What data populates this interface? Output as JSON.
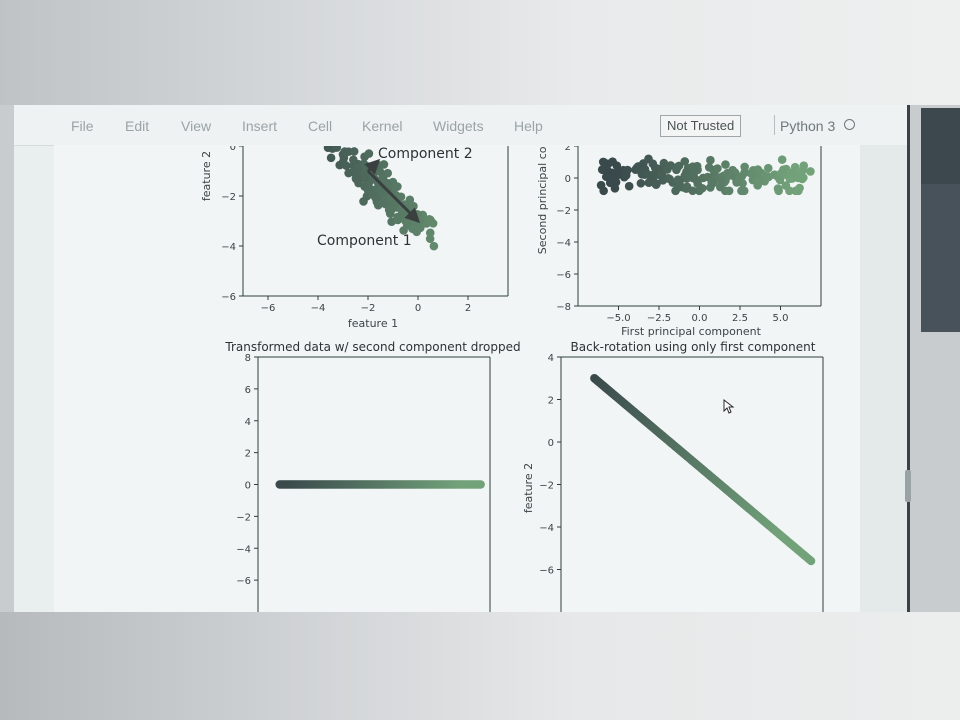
{
  "menu": {
    "file": "File",
    "edit": "Edit",
    "view": "View",
    "insert": "Insert",
    "cell": "Cell",
    "kernel": "Kernel",
    "widgets": "Widgets",
    "help": "Help"
  },
  "trust_badge": "Not Trusted",
  "kernel_name": "Python 3",
  "colors": {
    "dark_points": "#3a4a4c",
    "light_points": "#72a27a",
    "arrow": "#3a3f40"
  },
  "chart_data": [
    {
      "type": "scatter",
      "title": "",
      "xlabel": "feature 1",
      "ylabel": "feature 2",
      "xticks": [
        "−6",
        "−4",
        "−2",
        "0",
        "2"
      ],
      "yticks": [
        "0",
        "−2",
        "−4",
        "−6"
      ],
      "xlim": [
        -7,
        3.6
      ],
      "ylim": [
        -6,
        0
      ],
      "annotations": [
        "Component 2",
        "Component 1"
      ],
      "arrow": {
        "from": [
          -2,
          -1
        ],
        "to": [
          0,
          -3
        ]
      }
    },
    {
      "type": "scatter",
      "title": "",
      "xlabel": "First principal component",
      "ylabel": "Second principal com",
      "xticks": [
        "−5.0",
        "−2.5",
        "0.0",
        "2.5",
        "5.0"
      ],
      "yticks": [
        "2",
        "0",
        "−2",
        "−4",
        "−6",
        "−8"
      ],
      "xlim": [
        -7.5,
        7.5
      ],
      "ylim": [
        -8,
        2
      ],
      "x_range": [
        -6.1,
        6.9
      ],
      "y_range": [
        -0.8,
        1.2
      ]
    },
    {
      "type": "scatter",
      "title": "Transformed data w/ second component dropped",
      "xlabel": "",
      "ylabel": "",
      "yticks": [
        "8",
        "6",
        "4",
        "2",
        "0",
        "−2",
        "−4",
        "−6"
      ],
      "xlim": [
        -7.5,
        7.5
      ],
      "ylim": [
        -8,
        8
      ],
      "x_range": [
        -6.1,
        6.9
      ],
      "y_value": 0
    },
    {
      "type": "scatter",
      "title": "Back-rotation using only first component",
      "xlabel": "",
      "ylabel": "feature 2",
      "yticks": [
        "4",
        "2",
        "0",
        "−2",
        "−4",
        "−6"
      ],
      "xlim": [
        -7,
        4
      ],
      "ylim": [
        -8,
        4
      ],
      "line_from": [
        -5.6,
        3.0
      ],
      "line_to": [
        3.5,
        -5.6
      ]
    }
  ]
}
